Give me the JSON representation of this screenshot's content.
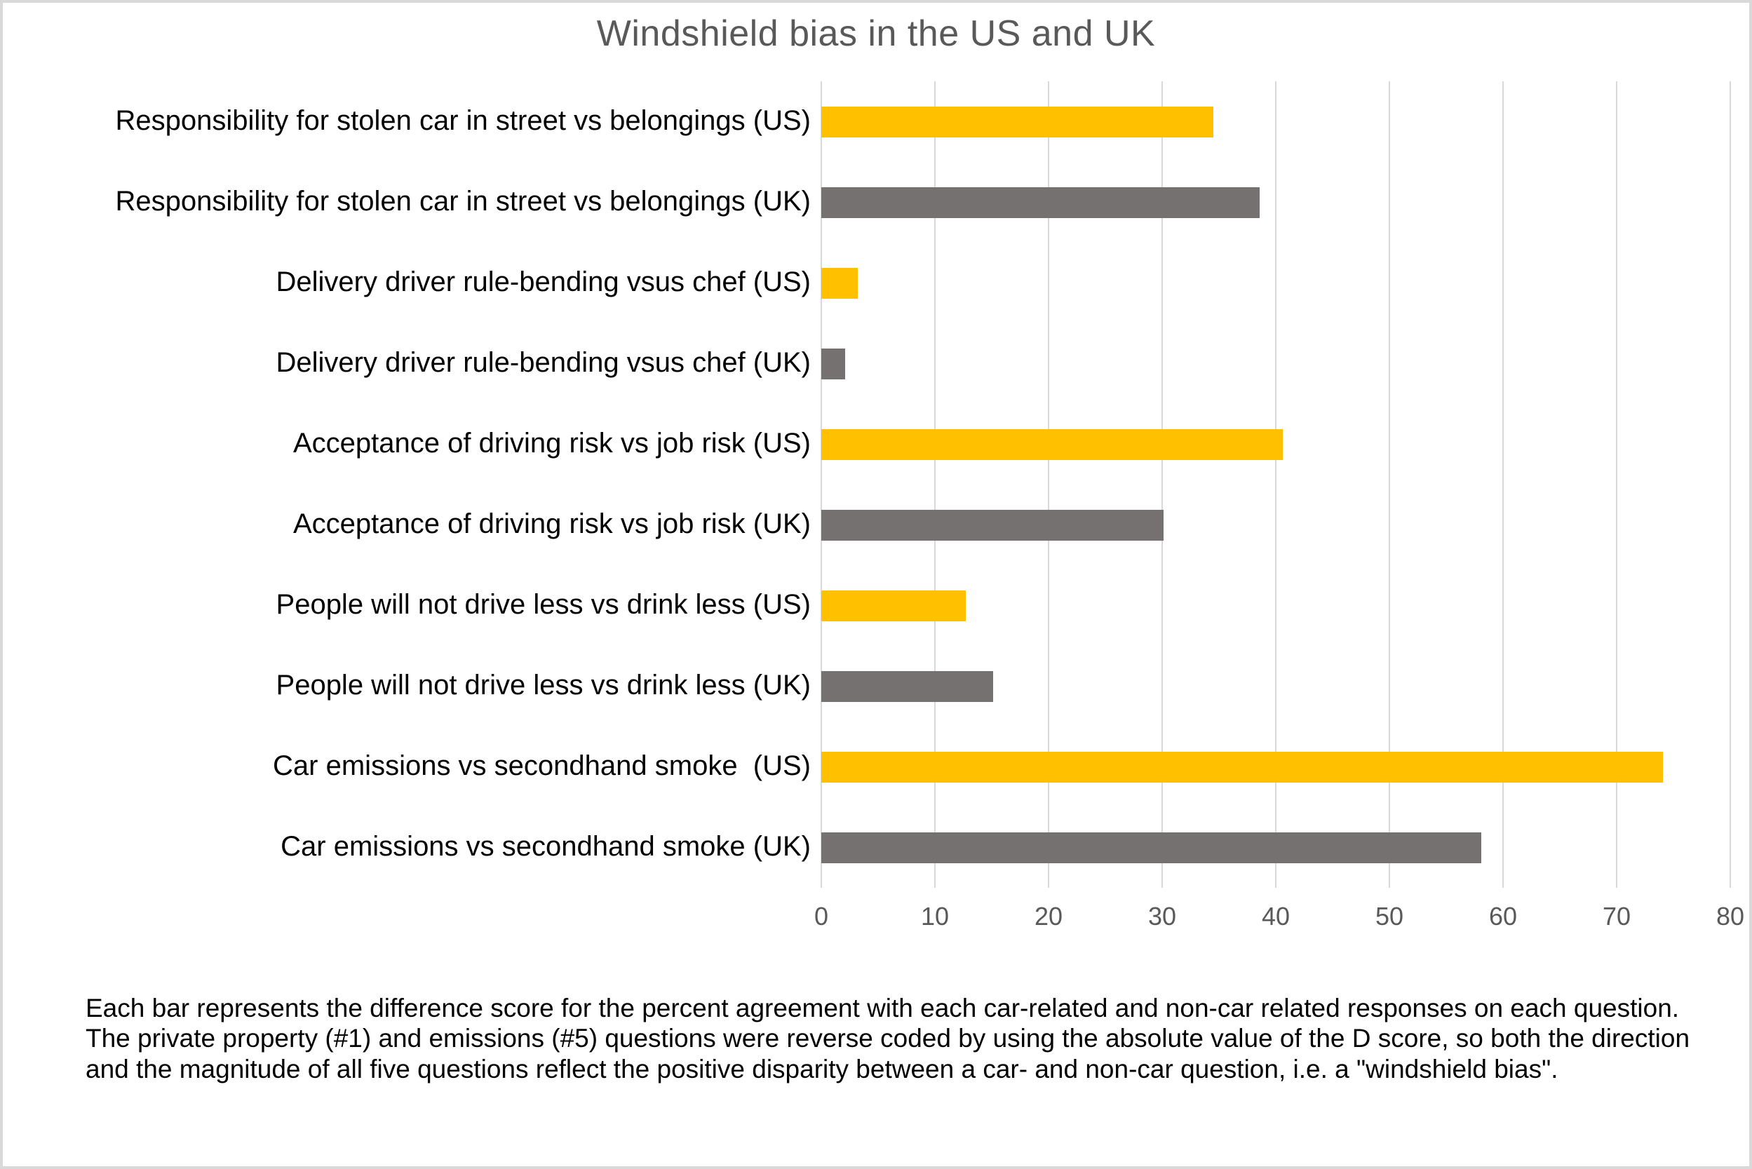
{
  "title": "Windshield bias in the US and UK",
  "caption": "Each bar represents the difference score for the percent agreement with each car-related and non-car related responses on each question. The private property (#1) and emissions (#5) questions were reverse coded by using the absolute value of the D score, so both the direction and the magnitude of all five questions reflect the positive disparity between a car- and non-car question, i.e. a \"windshield bias\".",
  "colors": {
    "us_bar": "#FFC000",
    "uk_bar": "#767171",
    "gridline": "#D9D9D9",
    "title_text": "#595959",
    "axis_text": "#595959",
    "label_text": "#000000",
    "page_border": "#D9D9D9"
  },
  "chart_data": {
    "type": "bar",
    "orientation": "horizontal",
    "title": "Windshield bias in the US and UK",
    "xlabel": "",
    "ylabel": "",
    "xlim": [
      0,
      80
    ],
    "xticks": [
      0,
      10,
      20,
      30,
      40,
      50,
      60,
      70,
      80
    ],
    "grid": true,
    "legend_position": "none",
    "bars": [
      {
        "label": "Responsibility for stolen car in street vs belongings (US)",
        "value": 34.5,
        "group": "US"
      },
      {
        "label": "Responsibility for stolen car in street vs belongings (UK)",
        "value": 38.6,
        "group": "UK"
      },
      {
        "label": "Delivery driver rule-bending vsus chef (US)",
        "value": 3.2,
        "group": "US"
      },
      {
        "label": "Delivery driver rule-bending vsus chef (UK)",
        "value": 2.1,
        "group": "UK"
      },
      {
        "label": "Acceptance of driving risk vs job risk (US)",
        "value": 40.6,
        "group": "US"
      },
      {
        "label": "Acceptance of driving risk vs job risk (UK)",
        "value": 30.1,
        "group": "UK"
      },
      {
        "label": "People will not drive less vs drink less (US)",
        "value": 12.7,
        "group": "US"
      },
      {
        "label": "People will not drive less vs drink less (UK)",
        "value": 15.1,
        "group": "UK"
      },
      {
        "label": "Car emissions vs secondhand smoke  (US)",
        "value": 74.1,
        "group": "US"
      },
      {
        "label": "Car emissions vs secondhand smoke (UK)",
        "value": 58.1,
        "group": "UK"
      }
    ]
  }
}
